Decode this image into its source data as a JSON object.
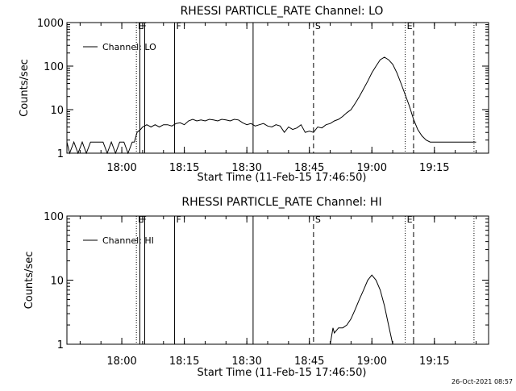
{
  "footer": {
    "date": "26-Oct-2021 08:57"
  },
  "chart_data": [
    {
      "type": "line",
      "title": "RHESSI PARTICLE_RATE Channel: LO",
      "xlabel": "Start Time (11-Feb-15 17:46:50)",
      "ylabel": "Counts/sec",
      "x_unit": "time (HH:MM)",
      "xlim": [
        "17:46:50",
        "19:28:00"
      ],
      "ylim": [
        1,
        1000
      ],
      "yscale": "log",
      "x_ticks": [
        "18:00",
        "18:15",
        "18:30",
        "18:45",
        "19:00",
        "19:15"
      ],
      "y_ticks": [
        "1",
        "10",
        "100",
        "1000"
      ],
      "legend": {
        "label": "Channel: LO",
        "position": "top-left"
      },
      "markers": [
        {
          "time": "18:03:30",
          "label": "E",
          "style": "dotted"
        },
        {
          "time": "18:04:20",
          "label": "F",
          "style": "solid"
        },
        {
          "time": "18:05:30",
          "label": "",
          "style": "solid"
        },
        {
          "time": "18:12:40",
          "label": "F",
          "style": "solid"
        },
        {
          "time": "18:31:30",
          "label": "",
          "style": "solid"
        },
        {
          "time": "18:46:00",
          "label": "S",
          "style": "dashed"
        },
        {
          "time": "19:08:00",
          "label": "E",
          "style": "dotted"
        },
        {
          "time": "19:10:00",
          "label": "",
          "style": "dashed"
        },
        {
          "time": "19:24:30",
          "label": "",
          "style": "dotted"
        }
      ],
      "series": [
        {
          "x": [
            "17:46:50",
            "17:47:30",
            "17:48:30",
            "17:49:30",
            "17:50:30",
            "17:51:30",
            "17:52:30",
            "17:53:30",
            "17:54:30",
            "17:55:30",
            "17:56:30",
            "17:57:30",
            "17:58:30",
            "17:59:30",
            "18:00:30",
            "18:01:30",
            "18:02:30",
            "18:03:00",
            "18:03:40",
            "18:04:30",
            "18:05:00",
            "18:06:00",
            "18:07:00",
            "18:08:00",
            "18:09:00",
            "18:10:00",
            "18:11:00",
            "18:12:00",
            "18:13:00",
            "18:14:00",
            "18:15:00",
            "18:16:00",
            "18:17:00",
            "18:18:00",
            "18:19:00",
            "18:20:00",
            "18:21:00",
            "18:22:00",
            "18:23:00",
            "18:24:00",
            "18:25:00",
            "18:26:00",
            "18:27:00",
            "18:28:00",
            "18:29:00",
            "18:30:00",
            "18:31:00",
            "18:32:00",
            "18:33:00",
            "18:34:00",
            "18:35:00",
            "18:36:00",
            "18:37:00",
            "18:38:00",
            "18:39:00",
            "18:40:00",
            "18:41:00",
            "18:42:00",
            "18:43:00",
            "18:44:00",
            "18:45:00",
            "18:46:00",
            "18:47:00",
            "18:48:00",
            "18:49:00",
            "18:50:00",
            "18:51:00",
            "18:52:00",
            "18:53:00",
            "18:54:00",
            "18:55:00",
            "18:56:00",
            "18:57:00",
            "18:58:00",
            "18:59:00",
            "19:00:00",
            "19:01:00",
            "19:02:00",
            "19:03:00",
            "19:04:00",
            "19:05:00",
            "19:06:00",
            "19:07:00",
            "19:08:00",
            "19:09:00",
            "19:10:00",
            "19:11:00",
            "19:12:00",
            "19:13:00",
            "19:14:00",
            "19:15:00",
            "19:16:00",
            "19:17:00",
            "19:18:00",
            "19:19:00",
            "19:20:00",
            "19:21:00",
            "19:22:00",
            "19:23:00",
            "19:24:00",
            "19:25:00"
          ],
          "y": [
            1.8,
            1.0,
            1.8,
            1.0,
            1.8,
            1.0,
            1.8,
            1.8,
            1.8,
            1.8,
            1.0,
            1.8,
            1.0,
            1.8,
            1.8,
            1.0,
            1.8,
            1.8,
            3.0,
            3.5,
            4.0,
            4.5,
            4.0,
            4.5,
            4.0,
            4.5,
            4.5,
            4.2,
            4.8,
            5.0,
            4.5,
            5.5,
            6.0,
            5.5,
            5.8,
            5.5,
            6.0,
            5.8,
            5.5,
            6.0,
            5.8,
            5.5,
            6.0,
            5.8,
            5.0,
            4.5,
            4.8,
            4.2,
            4.5,
            4.8,
            4.2,
            4.0,
            4.5,
            4.2,
            3.0,
            4.0,
            3.5,
            3.8,
            4.5,
            3.0,
            3.2,
            3.0,
            4.0,
            3.8,
            4.5,
            4.8,
            5.5,
            6.0,
            7.0,
            8.5,
            10,
            14,
            20,
            30,
            45,
            70,
            100,
            140,
            160,
            140,
            110,
            70,
            40,
            22,
            12,
            6,
            3.5,
            2.5,
            2.0,
            1.8,
            1.8,
            1.8,
            1.8,
            1.8,
            1.8,
            1.8,
            1.8,
            1.8,
            1.8,
            1.8,
            1.8
          ]
        }
      ]
    },
    {
      "type": "line",
      "title": "RHESSI PARTICLE_RATE Channel: HI",
      "xlabel": "Start Time (11-Feb-15 17:46:50)",
      "ylabel": "Counts/sec",
      "x_unit": "time (HH:MM)",
      "xlim": [
        "17:46:50",
        "19:28:00"
      ],
      "ylim": [
        1,
        100
      ],
      "yscale": "log",
      "x_ticks": [
        "18:00",
        "18:15",
        "18:30",
        "18:45",
        "19:00",
        "19:15"
      ],
      "y_ticks": [
        "1",
        "10",
        "100"
      ],
      "legend": {
        "label": "Channel: HI",
        "position": "top-left"
      },
      "markers": [
        {
          "time": "18:03:30",
          "label": "E",
          "style": "dotted"
        },
        {
          "time": "18:04:20",
          "label": "F",
          "style": "solid"
        },
        {
          "time": "18:05:30",
          "label": "",
          "style": "solid"
        },
        {
          "time": "18:12:40",
          "label": "F",
          "style": "solid"
        },
        {
          "time": "18:31:30",
          "label": "",
          "style": "solid"
        },
        {
          "time": "18:46:00",
          "label": "S",
          "style": "dashed"
        },
        {
          "time": "19:08:00",
          "label": "E",
          "style": "dotted"
        },
        {
          "time": "19:10:00",
          "label": "",
          "style": "dashed"
        },
        {
          "time": "19:24:30",
          "label": "",
          "style": "dotted"
        }
      ],
      "series": [
        {
          "x": [
            "18:50:00",
            "18:50:40",
            "18:51:00",
            "18:52:00",
            "18:53:00",
            "18:54:00",
            "18:55:00",
            "18:56:00",
            "18:57:00",
            "18:58:00",
            "18:59:00",
            "19:00:00",
            "19:01:00",
            "19:02:00",
            "19:03:00",
            "19:04:00",
            "19:05:00"
          ],
          "y": [
            1.0,
            1.8,
            1.5,
            1.8,
            1.8,
            2.0,
            2.5,
            3.5,
            5.0,
            7.0,
            10,
            12,
            10,
            7,
            4,
            2,
            1.0
          ]
        }
      ]
    }
  ]
}
